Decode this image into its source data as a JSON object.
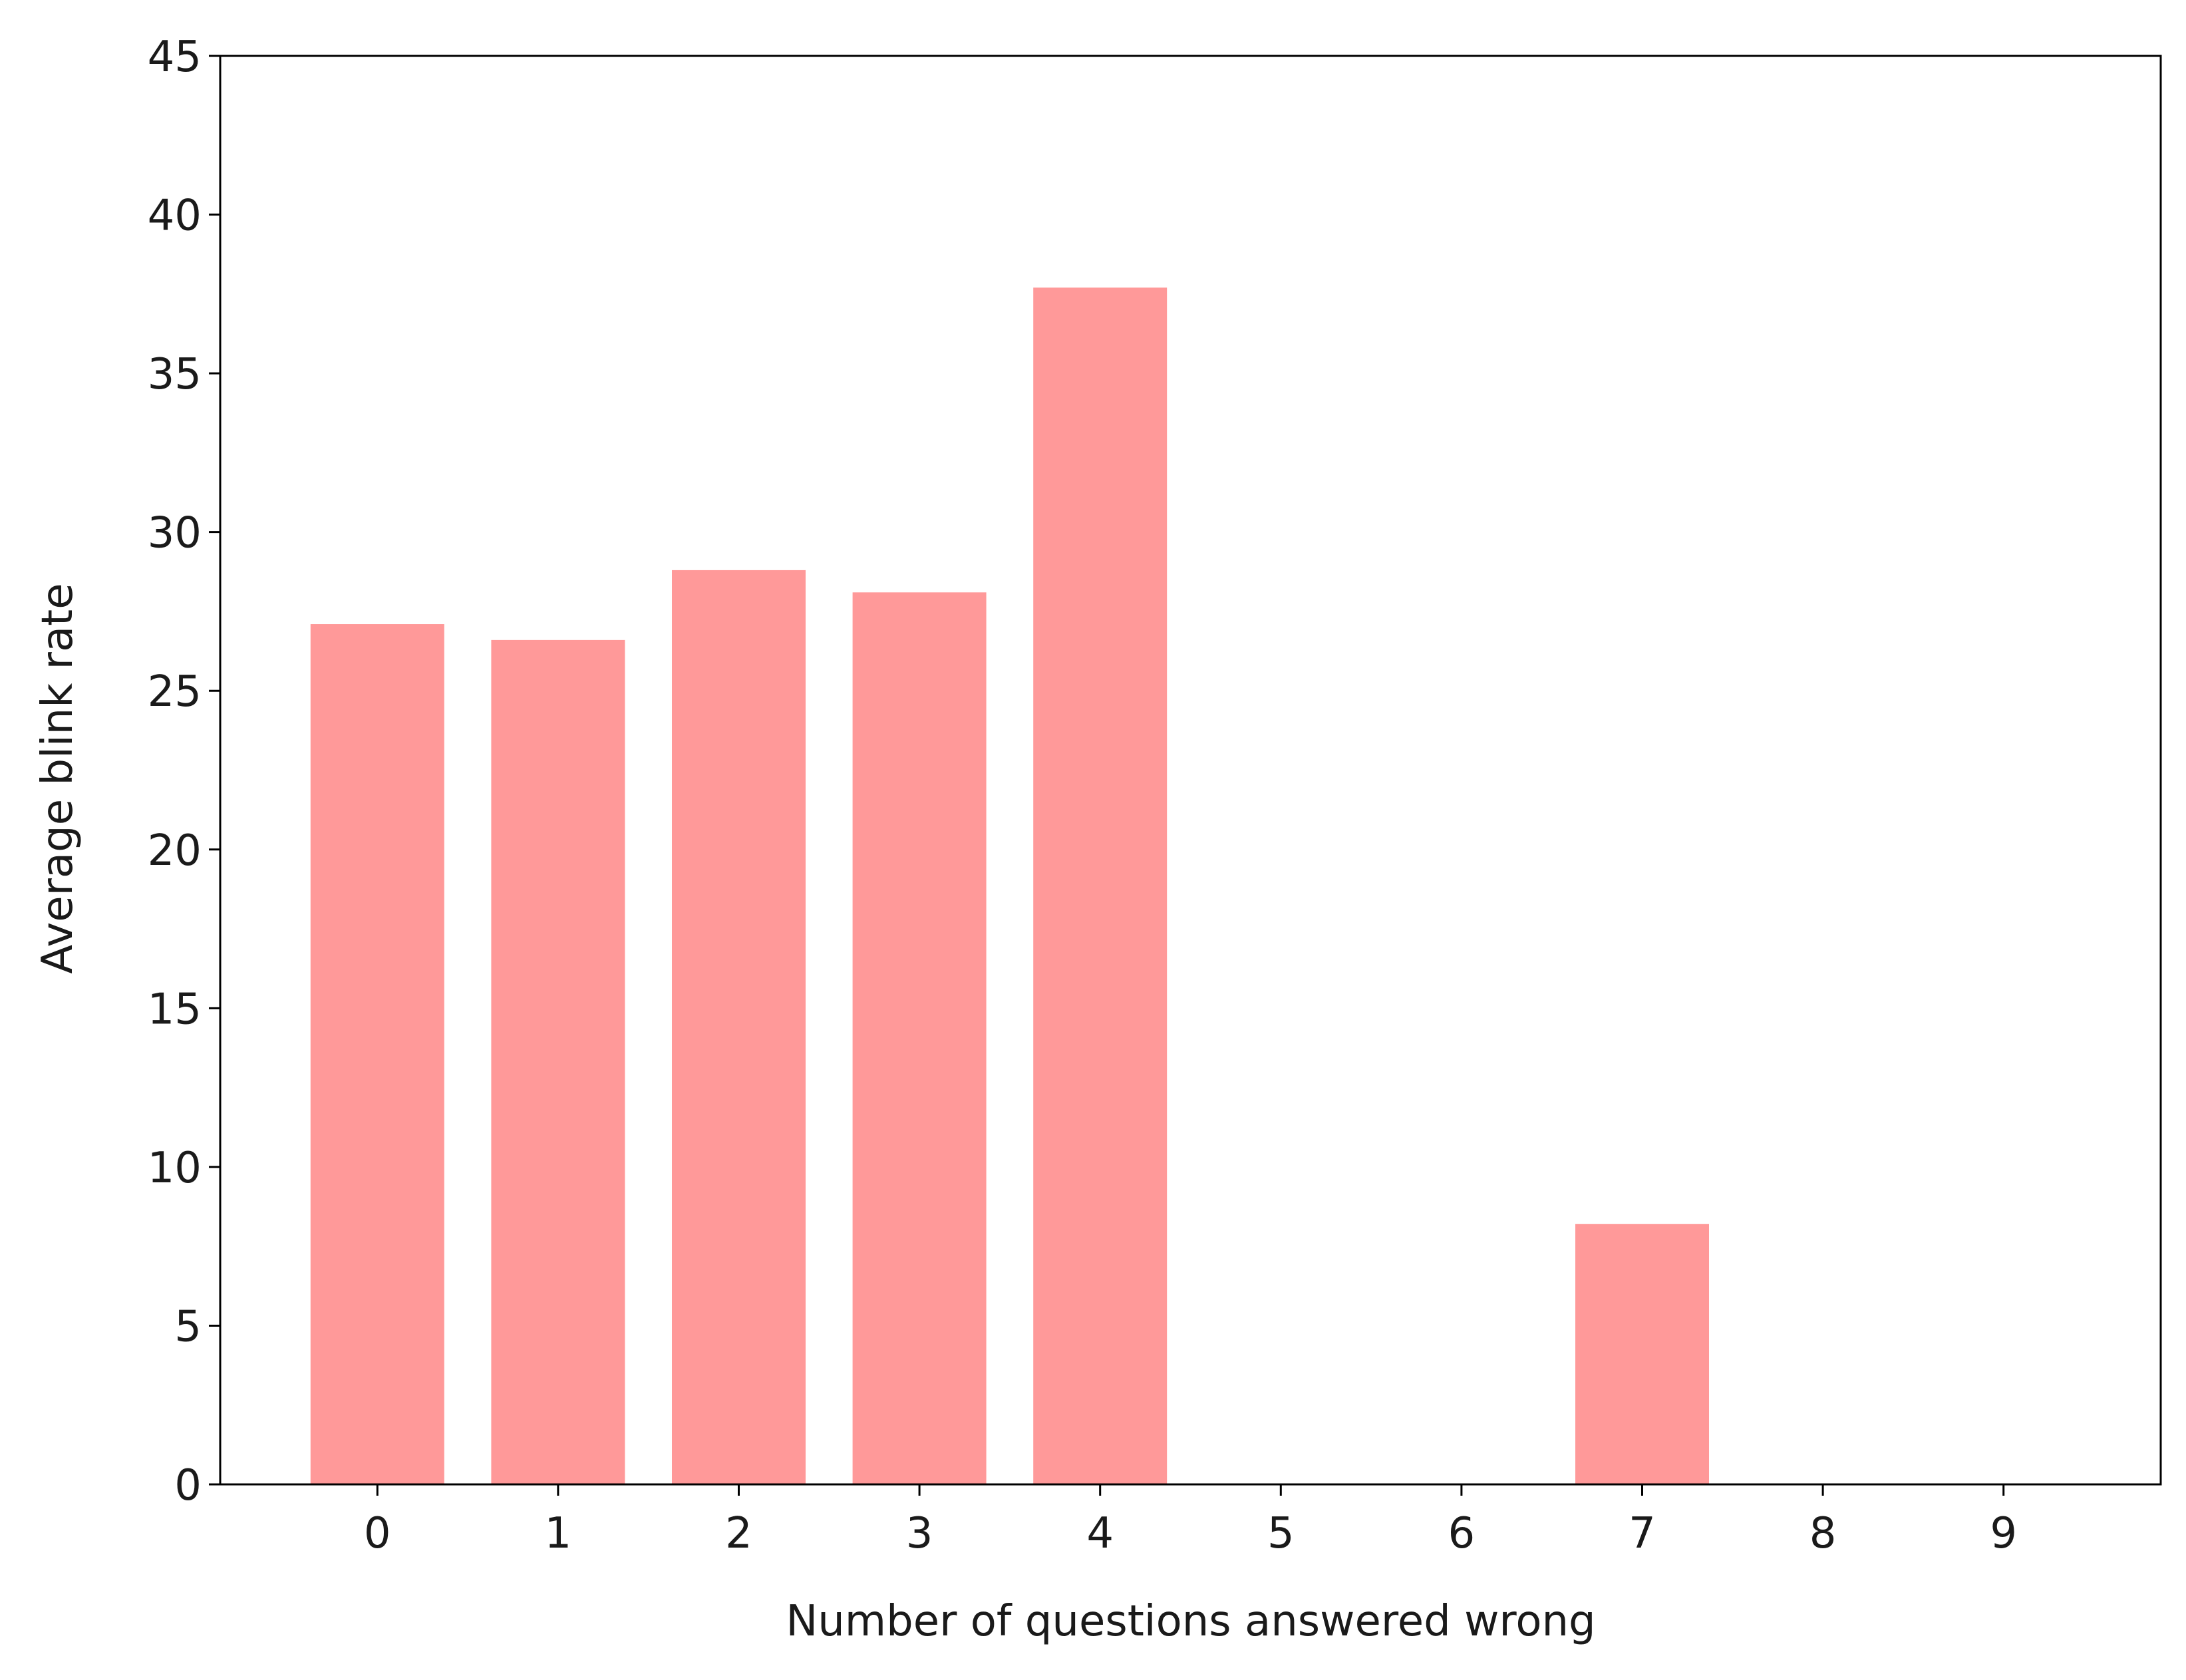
{
  "chart_data": {
    "type": "bar",
    "x_label": "Number of questions answered wrong",
    "y_label": "Average blink rate",
    "x": [
      0,
      1,
      2,
      3,
      4,
      5,
      6,
      7,
      8,
      9
    ],
    "values": [
      27.1,
      26.6,
      28.8,
      28.1,
      37.7,
      0,
      0,
      8.2,
      0,
      0
    ],
    "color": "#ff9999",
    "xlim": [
      -0.87,
      9.87
    ],
    "xticks": [
      0,
      1,
      2,
      3,
      4,
      5,
      6,
      7,
      8,
      9
    ],
    "ylim": [
      0,
      45
    ],
    "yticks": [
      0,
      5,
      10,
      15,
      20,
      25,
      30,
      35,
      40,
      45
    ],
    "grid": false
  }
}
